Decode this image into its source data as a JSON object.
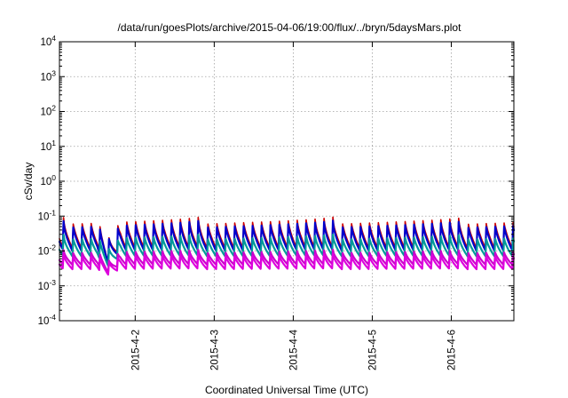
{
  "chart_data": {
    "type": "line",
    "title": "/data/run/goesPlots/archive/2015-04-06/19:00/flux/../bryn/5daysMars.plot",
    "xlabel": "Coordinated Universal Time (UTC)",
    "ylabel": "cSv/day",
    "yscale": "log",
    "ylim": [
      0.0001,
      10000
    ],
    "y_ticks": [
      {
        "base": "10",
        "exp": "-4"
      },
      {
        "base": "10",
        "exp": "-3"
      },
      {
        "base": "10",
        "exp": "-2"
      },
      {
        "base": "10",
        "exp": "-1"
      },
      {
        "base": "10",
        "exp": "0"
      },
      {
        "base": "10",
        "exp": "1"
      },
      {
        "base": "10",
        "exp": "2"
      },
      {
        "base": "10",
        "exp": "3"
      },
      {
        "base": "10",
        "exp": "4"
      }
    ],
    "xlim": [
      "2015-04-01 01:00",
      "2015-04-06 19:00"
    ],
    "x_ticks": [
      "2015-4-2",
      "2015-4-3",
      "2015-4-4",
      "2015-4-5",
      "2015-4-6"
    ],
    "grid": true,
    "oscillation_cycles_per_day": 8.8,
    "dip": {
      "date": "2015-04-01 16:00",
      "magenta_min": 0.0011
    },
    "series": [
      {
        "color": "#cc0000",
        "peak": 0.095,
        "trough": 0.012
      },
      {
        "color": "#0000cc",
        "peak": 0.075,
        "trough": 0.01
      },
      {
        "color": "#009999",
        "peak": 0.03,
        "trough": 0.007
      },
      {
        "color": "#cc00cc",
        "peak": 0.011,
        "trough": 0.004
      },
      {
        "color": "#dd00dd",
        "peak": 0.0085,
        "trough": 0.003
      }
    ]
  }
}
